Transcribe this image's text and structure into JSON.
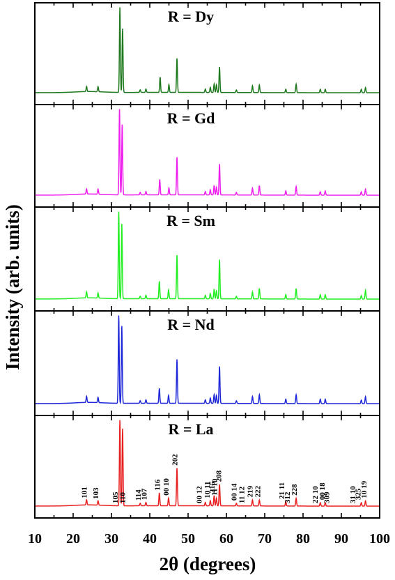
{
  "chart_data": {
    "type": "line",
    "xlabel": "2θ (degrees)",
    "ylabel": "Intensity (arb. units)",
    "xlim": [
      10,
      100
    ],
    "x_ticks": [
      10,
      20,
      30,
      40,
      50,
      60,
      70,
      80,
      90,
      100
    ],
    "grid": false,
    "legend": "none",
    "series": [
      {
        "name": "R = Dy",
        "color": "#1f7a1f",
        "peaks": [
          [
            23.5,
            0.06
          ],
          [
            26.5,
            0.06
          ],
          [
            32.2,
            1.0
          ],
          [
            32.9,
            0.75
          ],
          [
            37.5,
            0.03
          ],
          [
            39.0,
            0.04
          ],
          [
            42.7,
            0.18
          ],
          [
            45.0,
            0.09
          ],
          [
            47.1,
            0.4
          ],
          [
            54.5,
            0.04
          ],
          [
            55.8,
            0.06
          ],
          [
            56.8,
            0.1
          ],
          [
            57.4,
            0.09
          ],
          [
            58.2,
            0.3
          ],
          [
            62.6,
            0.03
          ],
          [
            66.8,
            0.08
          ],
          [
            68.6,
            0.09
          ],
          [
            75.5,
            0.04
          ],
          [
            78.2,
            0.1
          ],
          [
            84.5,
            0.04
          ],
          [
            85.8,
            0.04
          ],
          [
            95.2,
            0.04
          ],
          [
            96.3,
            0.06
          ]
        ]
      },
      {
        "name": "R = Gd",
        "color": "#ee1fee",
        "peaks": [
          [
            23.5,
            0.06
          ],
          [
            26.5,
            0.06
          ],
          [
            32.1,
            1.0
          ],
          [
            32.8,
            0.82
          ],
          [
            37.5,
            0.03
          ],
          [
            39.0,
            0.04
          ],
          [
            42.6,
            0.18
          ],
          [
            45.0,
            0.08
          ],
          [
            47.1,
            0.44
          ],
          [
            54.5,
            0.04
          ],
          [
            55.8,
            0.06
          ],
          [
            56.8,
            0.11
          ],
          [
            57.4,
            0.09
          ],
          [
            58.2,
            0.36
          ],
          [
            62.6,
            0.03
          ],
          [
            66.8,
            0.08
          ],
          [
            68.6,
            0.11
          ],
          [
            75.5,
            0.05
          ],
          [
            78.2,
            0.1
          ],
          [
            84.5,
            0.04
          ],
          [
            85.8,
            0.05
          ],
          [
            95.2,
            0.04
          ],
          [
            96.3,
            0.07
          ]
        ]
      },
      {
        "name": "R = Sm",
        "color": "#22ee22",
        "peaks": [
          [
            23.5,
            0.07
          ],
          [
            26.5,
            0.06
          ],
          [
            31.9,
            1.0
          ],
          [
            32.7,
            0.86
          ],
          [
            37.5,
            0.03
          ],
          [
            39.0,
            0.04
          ],
          [
            42.5,
            0.2
          ],
          [
            44.9,
            0.1
          ],
          [
            47.1,
            0.5
          ],
          [
            54.5,
            0.04
          ],
          [
            55.8,
            0.06
          ],
          [
            56.8,
            0.11
          ],
          [
            57.4,
            0.09
          ],
          [
            58.2,
            0.45
          ],
          [
            62.6,
            0.03
          ],
          [
            66.8,
            0.08
          ],
          [
            68.6,
            0.12
          ],
          [
            75.5,
            0.05
          ],
          [
            78.2,
            0.12
          ],
          [
            84.5,
            0.05
          ],
          [
            85.8,
            0.05
          ],
          [
            95.2,
            0.04
          ],
          [
            96.3,
            0.1
          ]
        ]
      },
      {
        "name": "R = Nd",
        "color": "#1f28d8",
        "peaks": [
          [
            23.5,
            0.07
          ],
          [
            26.5,
            0.06
          ],
          [
            31.9,
            1.0
          ],
          [
            32.7,
            0.88
          ],
          [
            37.5,
            0.03
          ],
          [
            39.0,
            0.04
          ],
          [
            42.5,
            0.17
          ],
          [
            44.9,
            0.09
          ],
          [
            47.1,
            0.5
          ],
          [
            54.5,
            0.04
          ],
          [
            55.8,
            0.06
          ],
          [
            56.8,
            0.1
          ],
          [
            57.4,
            0.09
          ],
          [
            58.2,
            0.42
          ],
          [
            62.6,
            0.03
          ],
          [
            66.8,
            0.08
          ],
          [
            68.6,
            0.1
          ],
          [
            75.5,
            0.05
          ],
          [
            78.2,
            0.1
          ],
          [
            84.5,
            0.05
          ],
          [
            85.8,
            0.05
          ],
          [
            95.2,
            0.04
          ],
          [
            96.3,
            0.08
          ]
        ]
      },
      {
        "name": "R = La",
        "color": "#e82020",
        "peaks": [
          [
            23.5,
            0.06
          ],
          [
            26.5,
            0.05
          ],
          [
            32.2,
            1.0
          ],
          [
            32.9,
            0.9
          ],
          [
            37.5,
            0.03
          ],
          [
            39.0,
            0.04
          ],
          [
            42.5,
            0.15
          ],
          [
            44.9,
            0.09
          ],
          [
            47.1,
            0.44
          ],
          [
            54.5,
            0.04
          ],
          [
            55.8,
            0.06
          ],
          [
            56.8,
            0.12
          ],
          [
            57.4,
            0.09
          ],
          [
            58.2,
            0.25
          ],
          [
            62.6,
            0.03
          ],
          [
            66.8,
            0.07
          ],
          [
            68.6,
            0.07
          ],
          [
            75.5,
            0.05
          ],
          [
            78.2,
            0.09
          ],
          [
            84.5,
            0.04
          ],
          [
            85.8,
            0.04
          ],
          [
            95.2,
            0.04
          ],
          [
            96.3,
            0.06
          ]
        ]
      }
    ],
    "hkl_labels": [
      {
        "text": "101",
        "x": 23.5
      },
      {
        "text": "103",
        "x": 26.5
      },
      {
        "text": "105",
        "x": 31.6
      },
      {
        "text": "110",
        "x": 33.5
      },
      {
        "text": "114",
        "x": 37.6
      },
      {
        "text": "107",
        "x": 39.2
      },
      {
        "text": "116",
        "x": 42.6
      },
      {
        "text": "00 10",
        "x": 44.9
      },
      {
        "text": "202",
        "x": 47.2
      },
      {
        "text": "00 12",
        "x": 53.5
      },
      {
        "text": "10 11",
        "x": 55.6
      },
      {
        "text": "215",
        "x": 56.9
      },
      {
        "text": "11 10",
        "x": 57.5
      },
      {
        "text": "208",
        "x": 58.6
      },
      {
        "text": "00 14",
        "x": 62.6
      },
      {
        "text": "11 12",
        "x": 64.6
      },
      {
        "text": "219",
        "x": 66.8
      },
      {
        "text": "222",
        "x": 68.8
      },
      {
        "text": "21 11",
        "x": 75.1
      },
      {
        "text": "312",
        "x": 76.5
      },
      {
        "text": "228",
        "x": 78.4
      },
      {
        "text": "22 10",
        "x": 83.8
      },
      {
        "text": "00 18",
        "x": 85.6
      },
      {
        "text": "309",
        "x": 86.8
      },
      {
        "text": "31 10",
        "x": 93.6
      },
      {
        "text": "325",
        "x": 95.0
      },
      {
        "text": "10 19",
        "x": 96.5
      }
    ]
  }
}
